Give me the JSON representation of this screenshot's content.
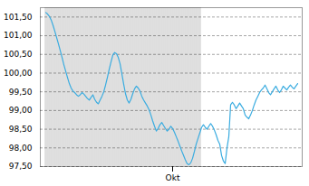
{
  "chart_data": {
    "type": "line",
    "categories": [
      null,
      null,
      null,
      null,
      null,
      null,
      null,
      null,
      null,
      null,
      null,
      null,
      null,
      null,
      null,
      null,
      null,
      null,
      null,
      null,
      null,
      null,
      null,
      null,
      null,
      null,
      null,
      null,
      null,
      null,
      null,
      null,
      null,
      null,
      null,
      null,
      null,
      null,
      null,
      null,
      null,
      null,
      null,
      null,
      null,
      null,
      null,
      null,
      null,
      null,
      null,
      null,
      null,
      null,
      null,
      null,
      null,
      null,
      null,
      null,
      null,
      null,
      null,
      null,
      null,
      null,
      null,
      null,
      null,
      null,
      "Okt",
      null,
      null,
      null,
      null,
      null,
      null,
      null,
      null,
      null,
      null,
      null,
      null,
      null,
      null,
      null,
      null,
      null,
      null,
      null,
      null,
      null,
      null,
      null,
      null,
      null,
      null,
      null,
      null,
      null,
      null,
      null,
      null,
      null,
      null,
      null,
      null,
      null,
      null,
      null,
      null,
      null,
      null,
      null,
      null,
      null,
      null,
      null,
      null,
      null,
      null,
      null,
      null,
      null,
      null,
      null,
      null,
      null,
      null,
      null,
      null,
      null,
      null,
      null,
      null,
      null,
      null,
      null,
      null,
      null
    ],
    "values": [
      101.62,
      101.58,
      101.52,
      101.42,
      101.28,
      101.12,
      100.95,
      100.78,
      100.6,
      100.42,
      100.22,
      100.05,
      99.88,
      99.72,
      99.6,
      99.52,
      99.48,
      99.42,
      99.38,
      99.42,
      99.48,
      99.44,
      99.38,
      99.32,
      99.28,
      99.35,
      99.42,
      99.3,
      99.22,
      99.18,
      99.28,
      99.38,
      99.5,
      99.68,
      99.88,
      100.1,
      100.3,
      100.48,
      100.55,
      100.52,
      100.42,
      100.25,
      99.98,
      99.7,
      99.45,
      99.28,
      99.2,
      99.3,
      99.45,
      99.58,
      99.65,
      99.6,
      99.52,
      99.38,
      99.28,
      99.2,
      99.12,
      99.02,
      98.88,
      98.72,
      98.58,
      98.45,
      98.52,
      98.62,
      98.68,
      98.6,
      98.52,
      98.45,
      98.5,
      98.58,
      98.52,
      98.42,
      98.3,
      98.18,
      98.05,
      97.92,
      97.8,
      97.68,
      97.58,
      97.55,
      97.6,
      97.72,
      97.9,
      98.1,
      98.25,
      98.4,
      98.55,
      98.62,
      98.55,
      98.5,
      98.58,
      98.65,
      98.58,
      98.48,
      98.35,
      98.2,
      98.1,
      97.8,
      97.65,
      97.58,
      98.0,
      98.3,
      99.15,
      99.22,
      99.15,
      99.05,
      99.12,
      99.2,
      99.12,
      99.05,
      98.88,
      98.82,
      98.78,
      98.88,
      99.0,
      99.15,
      99.28,
      99.38,
      99.48,
      99.55,
      99.6,
      99.68,
      99.58,
      99.48,
      99.42,
      99.5,
      99.58,
      99.65,
      99.55,
      99.48,
      99.55,
      99.65,
      99.6,
      99.55,
      99.62,
      99.68,
      99.62,
      99.58,
      99.65,
      99.72
    ],
    "color": "#3aace0",
    "ylim": [
      97.5,
      101.75
    ],
    "yticks": [
      {
        "value": 97.5,
        "label": "97,50"
      },
      {
        "value": 98.0,
        "label": "98,00"
      },
      {
        "value": 98.5,
        "label": "98,50"
      },
      {
        "value": 99.0,
        "label": "99,00"
      },
      {
        "value": 99.5,
        "label": "99,50"
      },
      {
        "value": 100.0,
        "label": "100,00"
      },
      {
        "value": 100.5,
        "label": "100,50"
      },
      {
        "value": 101.0,
        "label": "101,00"
      },
      {
        "value": 101.5,
        "label": "101,50"
      }
    ],
    "grid": true,
    "line_style": "solid",
    "shaded_range": [
      0,
      86
    ],
    "shaded_color": "#dedede"
  }
}
